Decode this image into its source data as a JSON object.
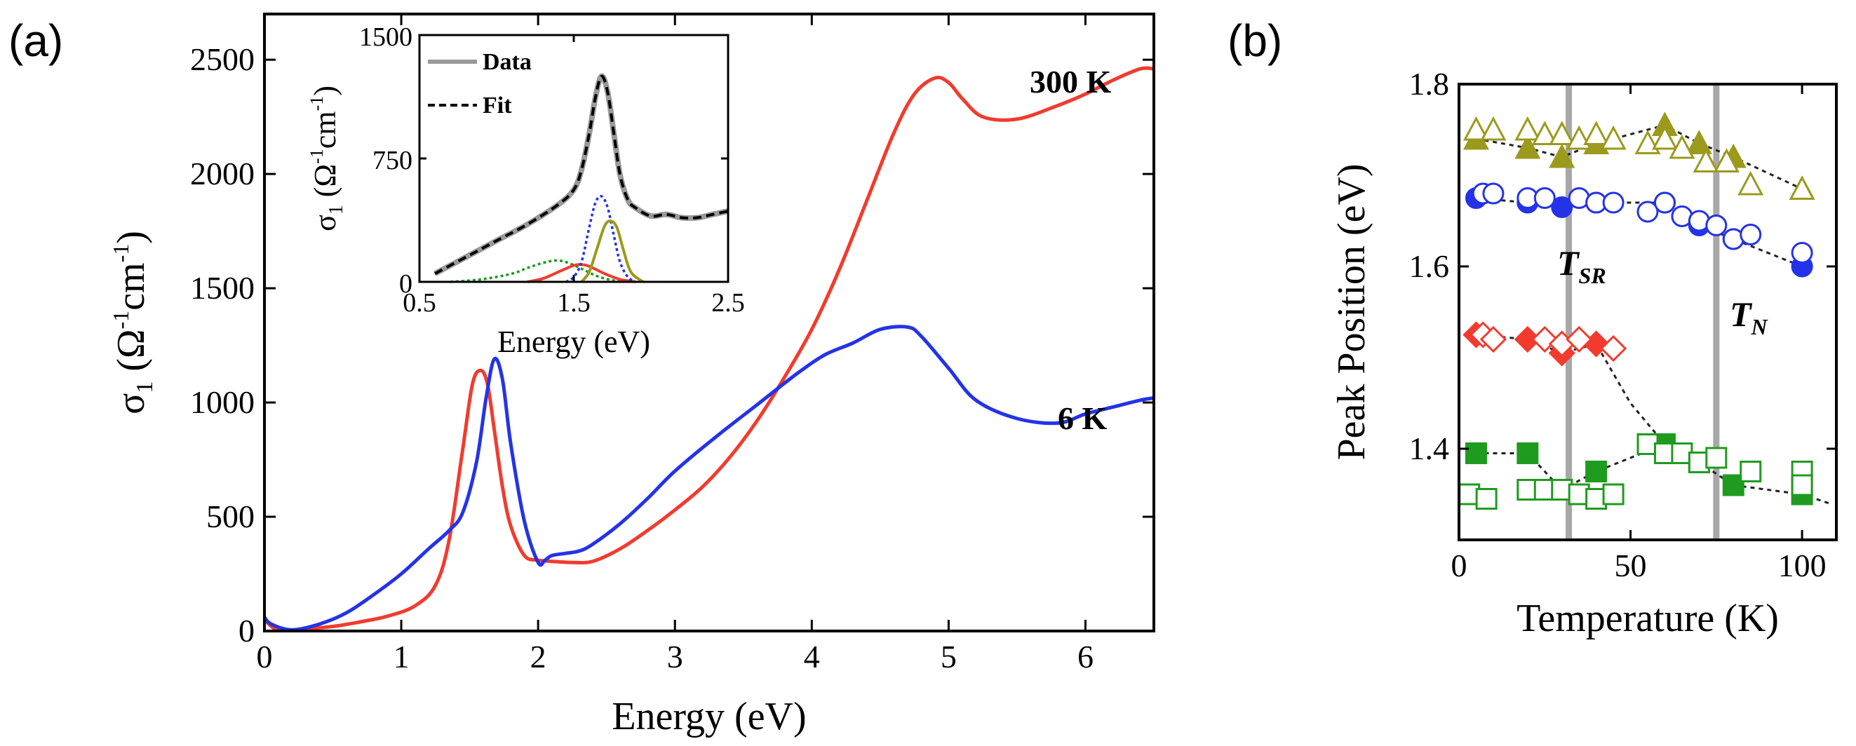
{
  "panels": {
    "a_label": "(a)",
    "b_label": "(b)"
  },
  "chart_data": [
    {
      "id": "main",
      "type": "line",
      "title": "",
      "xlabel": "Energy (eV)",
      "ylabel": "σ1 (Ω-1cm-1)",
      "ylabel_parts": {
        "sym": "σ",
        "sub": "1",
        "open": " (Ω",
        "sup1": "-1",
        "mid": "cm",
        "sup2": "-1",
        "close": ")"
      },
      "xlim": [
        0,
        6.5
      ],
      "ylim": [
        0,
        2700
      ],
      "xticks": [
        0,
        1,
        2,
        3,
        4,
        5,
        6
      ],
      "yticks": [
        0,
        500,
        1000,
        1500,
        2000,
        2500
      ],
      "series": [
        {
          "name": "300 K",
          "color": "#f23b2e",
          "x": [
            0.0,
            0.1,
            0.3,
            0.5,
            0.7,
            0.9,
            1.1,
            1.25,
            1.35,
            1.45,
            1.52,
            1.58,
            1.63,
            1.68,
            1.74,
            1.8,
            1.9,
            2.0,
            2.1,
            2.25,
            2.4,
            2.6,
            2.8,
            3.0,
            3.2,
            3.4,
            3.6,
            3.8,
            4.0,
            4.2,
            4.4,
            4.6,
            4.75,
            4.9,
            5.0,
            5.1,
            5.25,
            5.5,
            5.8,
            6.0,
            6.2,
            6.4,
            6.5
          ],
          "y": [
            50,
            5,
            10,
            20,
            40,
            65,
            110,
            200,
            400,
            800,
            1080,
            1140,
            1080,
            880,
            630,
            460,
            330,
            310,
            305,
            300,
            305,
            360,
            440,
            530,
            630,
            760,
            920,
            1110,
            1320,
            1580,
            1880,
            2180,
            2350,
            2420,
            2400,
            2330,
            2250,
            2240,
            2300,
            2350,
            2410,
            2460,
            2460
          ]
        },
        {
          "name": "6 K",
          "color": "#2433e8",
          "x": [
            0.0,
            0.05,
            0.2,
            0.4,
            0.6,
            0.8,
            1.0,
            1.2,
            1.35,
            1.45,
            1.55,
            1.62,
            1.68,
            1.74,
            1.8,
            1.9,
            2.0,
            2.05,
            2.1,
            2.2,
            2.3,
            2.4,
            2.6,
            2.8,
            3.0,
            3.3,
            3.6,
            3.9,
            4.1,
            4.3,
            4.5,
            4.7,
            4.8,
            5.0,
            5.2,
            5.5,
            5.8,
            6.0,
            6.2,
            6.4,
            6.5
          ],
          "y": [
            60,
            30,
            5,
            30,
            80,
            160,
            250,
            360,
            440,
            520,
            740,
            1020,
            1190,
            1100,
            820,
            480,
            300,
            310,
            330,
            340,
            350,
            380,
            470,
            580,
            700,
            850,
            990,
            1130,
            1210,
            1260,
            1320,
            1330,
            1290,
            1150,
            1010,
            930,
            910,
            950,
            980,
            1010,
            1020
          ]
        }
      ],
      "annotations": [
        {
          "text": "300 K",
          "color": "#f23b2e"
        },
        {
          "text": "6 K",
          "color": "#2433e8"
        }
      ]
    },
    {
      "id": "inset",
      "type": "line",
      "xlabel": "Energy (eV)",
      "ylabel": "σ1 (Ω-1cm-1)",
      "ylabel_parts": {
        "sym": "σ",
        "sub": "1",
        "open": " (Ω",
        "sup1": "-1",
        "mid": "cm",
        "sup2": "-1",
        "close": ")"
      },
      "xlim": [
        0.5,
        2.5
      ],
      "ylim": [
        0,
        1500
      ],
      "xticks": [
        0.5,
        1.5,
        2.5
      ],
      "yticks": [
        0,
        750,
        1500
      ],
      "legend": [
        {
          "label": "Data",
          "style": "solid",
          "color": "#9a9a9a"
        },
        {
          "label": "Fit",
          "style": "dashed",
          "color": "#000000"
        }
      ],
      "series": [
        {
          "name": "Data",
          "color": "#9a9a9a",
          "style": "solid",
          "x": [
            0.6,
            0.8,
            1.0,
            1.2,
            1.4,
            1.5,
            1.55,
            1.6,
            1.64,
            1.68,
            1.72,
            1.76,
            1.8,
            1.85,
            1.9,
            2.0,
            2.1,
            2.2,
            2.3,
            2.4,
            2.5
          ],
          "y": [
            50,
            150,
            250,
            350,
            470,
            560,
            680,
            900,
            1120,
            1250,
            1150,
            900,
            650,
            500,
            450,
            400,
            410,
            390,
            390,
            410,
            430
          ]
        },
        {
          "name": "Fit",
          "color": "#000000",
          "style": "dashed",
          "x": [
            0.6,
            0.8,
            1.0,
            1.2,
            1.4,
            1.5,
            1.55,
            1.6,
            1.64,
            1.68,
            1.72,
            1.76,
            1.8,
            1.85,
            1.9,
            2.0,
            2.1,
            2.2,
            2.3,
            2.4,
            2.5
          ],
          "y": [
            50,
            150,
            250,
            350,
            470,
            560,
            680,
            900,
            1120,
            1250,
            1150,
            900,
            650,
            500,
            450,
            400,
            410,
            390,
            390,
            410,
            430
          ]
        },
        {
          "name": "Green component",
          "color": "#1f9b1f",
          "style": "dotted",
          "x": [
            0.7,
            0.9,
            1.1,
            1.2,
            1.3,
            1.38,
            1.45,
            1.55,
            1.65,
            1.75,
            1.85
          ],
          "y": [
            0,
            15,
            50,
            85,
            115,
            130,
            120,
            80,
            35,
            10,
            0
          ]
        },
        {
          "name": "Red component",
          "color": "#f23b2e",
          "style": "solid",
          "x": [
            1.2,
            1.3,
            1.4,
            1.5,
            1.55,
            1.6,
            1.7,
            1.8,
            1.9
          ],
          "y": [
            0,
            20,
            60,
            100,
            105,
            95,
            50,
            15,
            0
          ]
        },
        {
          "name": "Blue component",
          "color": "#2433e8",
          "style": "dotted",
          "x": [
            1.45,
            1.5,
            1.55,
            1.6,
            1.64,
            1.68,
            1.72,
            1.76,
            1.8,
            1.85,
            1.9
          ],
          "y": [
            0,
            30,
            120,
            330,
            480,
            520,
            450,
            280,
            120,
            30,
            0
          ]
        },
        {
          "name": "Olive component",
          "color": "#9b9a1d",
          "style": "solid",
          "x": [
            1.55,
            1.6,
            1.65,
            1.7,
            1.74,
            1.78,
            1.82,
            1.87,
            1.95
          ],
          "y": [
            0,
            60,
            200,
            340,
            370,
            330,
            200,
            60,
            0
          ]
        }
      ]
    },
    {
      "id": "b",
      "type": "scatter",
      "xlabel": "Temperature (K)",
      "ylabel": "Peak Position (eV)",
      "xlim": [
        0,
        110
      ],
      "ylim": [
        1.3,
        1.8
      ],
      "xticks": [
        0,
        50,
        100
      ],
      "yticks": [
        1.4,
        1.6,
        1.8
      ],
      "vlines": [
        {
          "x": 32,
          "label": "T",
          "sub": "SR"
        },
        {
          "x": 75,
          "label": "T",
          "sub": "N"
        }
      ],
      "series": [
        {
          "name": "olive filled",
          "color": "#9b9a1d",
          "marker": "triangle",
          "filled": true,
          "x": [
            5,
            20,
            30,
            40,
            60,
            70,
            80,
            100
          ],
          "y": [
            1.74,
            1.73,
            1.72,
            1.735,
            1.755,
            1.735,
            1.72,
            1.685
          ]
        },
        {
          "name": "olive open",
          "color": "#9b9a1d",
          "marker": "triangle",
          "filled": false,
          "x": [
            5,
            10,
            20,
            25,
            30,
            35,
            40,
            45,
            55,
            60,
            65,
            72,
            78,
            85,
            100
          ],
          "y": [
            1.75,
            1.75,
            1.75,
            1.745,
            1.745,
            1.74,
            1.745,
            1.74,
            1.735,
            1.74,
            1.73,
            1.715,
            1.715,
            1.69,
            1.685
          ]
        },
        {
          "name": "blue filled",
          "color": "#2433e8",
          "marker": "circle",
          "filled": true,
          "x": [
            5,
            20,
            30,
            40,
            60,
            70,
            80,
            100
          ],
          "y": [
            1.675,
            1.67,
            1.665,
            1.67,
            1.67,
            1.645,
            1.63,
            1.6
          ]
        },
        {
          "name": "blue open",
          "color": "#2433e8",
          "marker": "circle",
          "filled": false,
          "x": [
            7,
            10,
            20,
            25,
            35,
            40,
            45,
            55,
            60,
            65,
            70,
            75,
            80,
            85,
            100
          ],
          "y": [
            1.68,
            1.68,
            1.675,
            1.675,
            1.675,
            1.67,
            1.67,
            1.66,
            1.67,
            1.655,
            1.65,
            1.645,
            1.63,
            1.635,
            1.615
          ]
        },
        {
          "name": "red filled",
          "color": "#f23b2e",
          "marker": "diamond",
          "filled": true,
          "x": [
            5,
            20,
            30,
            40
          ],
          "y": [
            1.525,
            1.52,
            1.505,
            1.515
          ]
        },
        {
          "name": "red open",
          "color": "#f23b2e",
          "marker": "diamond",
          "filled": false,
          "x": [
            7,
            10,
            25,
            30,
            35,
            45
          ],
          "y": [
            1.525,
            1.52,
            1.52,
            1.515,
            1.52,
            1.51
          ]
        },
        {
          "name": "green filled",
          "color": "#1f9b1f",
          "marker": "square",
          "filled": true,
          "x": [
            5,
            20,
            30,
            40,
            60,
            70,
            80,
            100
          ],
          "y": [
            1.395,
            1.395,
            1.355,
            1.375,
            1.405,
            1.385,
            1.36,
            1.35
          ]
        },
        {
          "name": "green open",
          "color": "#1f9b1f",
          "marker": "square",
          "filled": false,
          "x": [
            3,
            8,
            20,
            25,
            30,
            35,
            40,
            45,
            55,
            60,
            65,
            70,
            75,
            85,
            100,
            100
          ],
          "y": [
            1.35,
            1.345,
            1.355,
            1.355,
            1.355,
            1.35,
            1.345,
            1.35,
            1.405,
            1.395,
            1.395,
            1.385,
            1.39,
            1.375,
            1.375,
            1.36
          ]
        }
      ],
      "dashed_fits": [
        {
          "x": [
            5,
            20,
            30,
            40,
            60,
            70,
            80,
            100
          ],
          "y": [
            1.74,
            1.73,
            1.72,
            1.735,
            1.755,
            1.735,
            1.72,
            1.685
          ]
        },
        {
          "x": [
            5,
            20,
            30,
            40,
            60,
            70,
            80,
            100
          ],
          "y": [
            1.675,
            1.67,
            1.665,
            1.67,
            1.67,
            1.645,
            1.63,
            1.6
          ]
        },
        {
          "x": [
            5,
            20,
            30,
            40,
            50,
            60
          ],
          "y": [
            1.525,
            1.52,
            1.505,
            1.515,
            1.45,
            1.405
          ]
        },
        {
          "x": [
            5,
            20,
            30,
            40,
            60,
            70,
            80,
            100,
            108
          ],
          "y": [
            1.395,
            1.395,
            1.355,
            1.375,
            1.405,
            1.385,
            1.36,
            1.35,
            1.34
          ]
        }
      ]
    }
  ]
}
